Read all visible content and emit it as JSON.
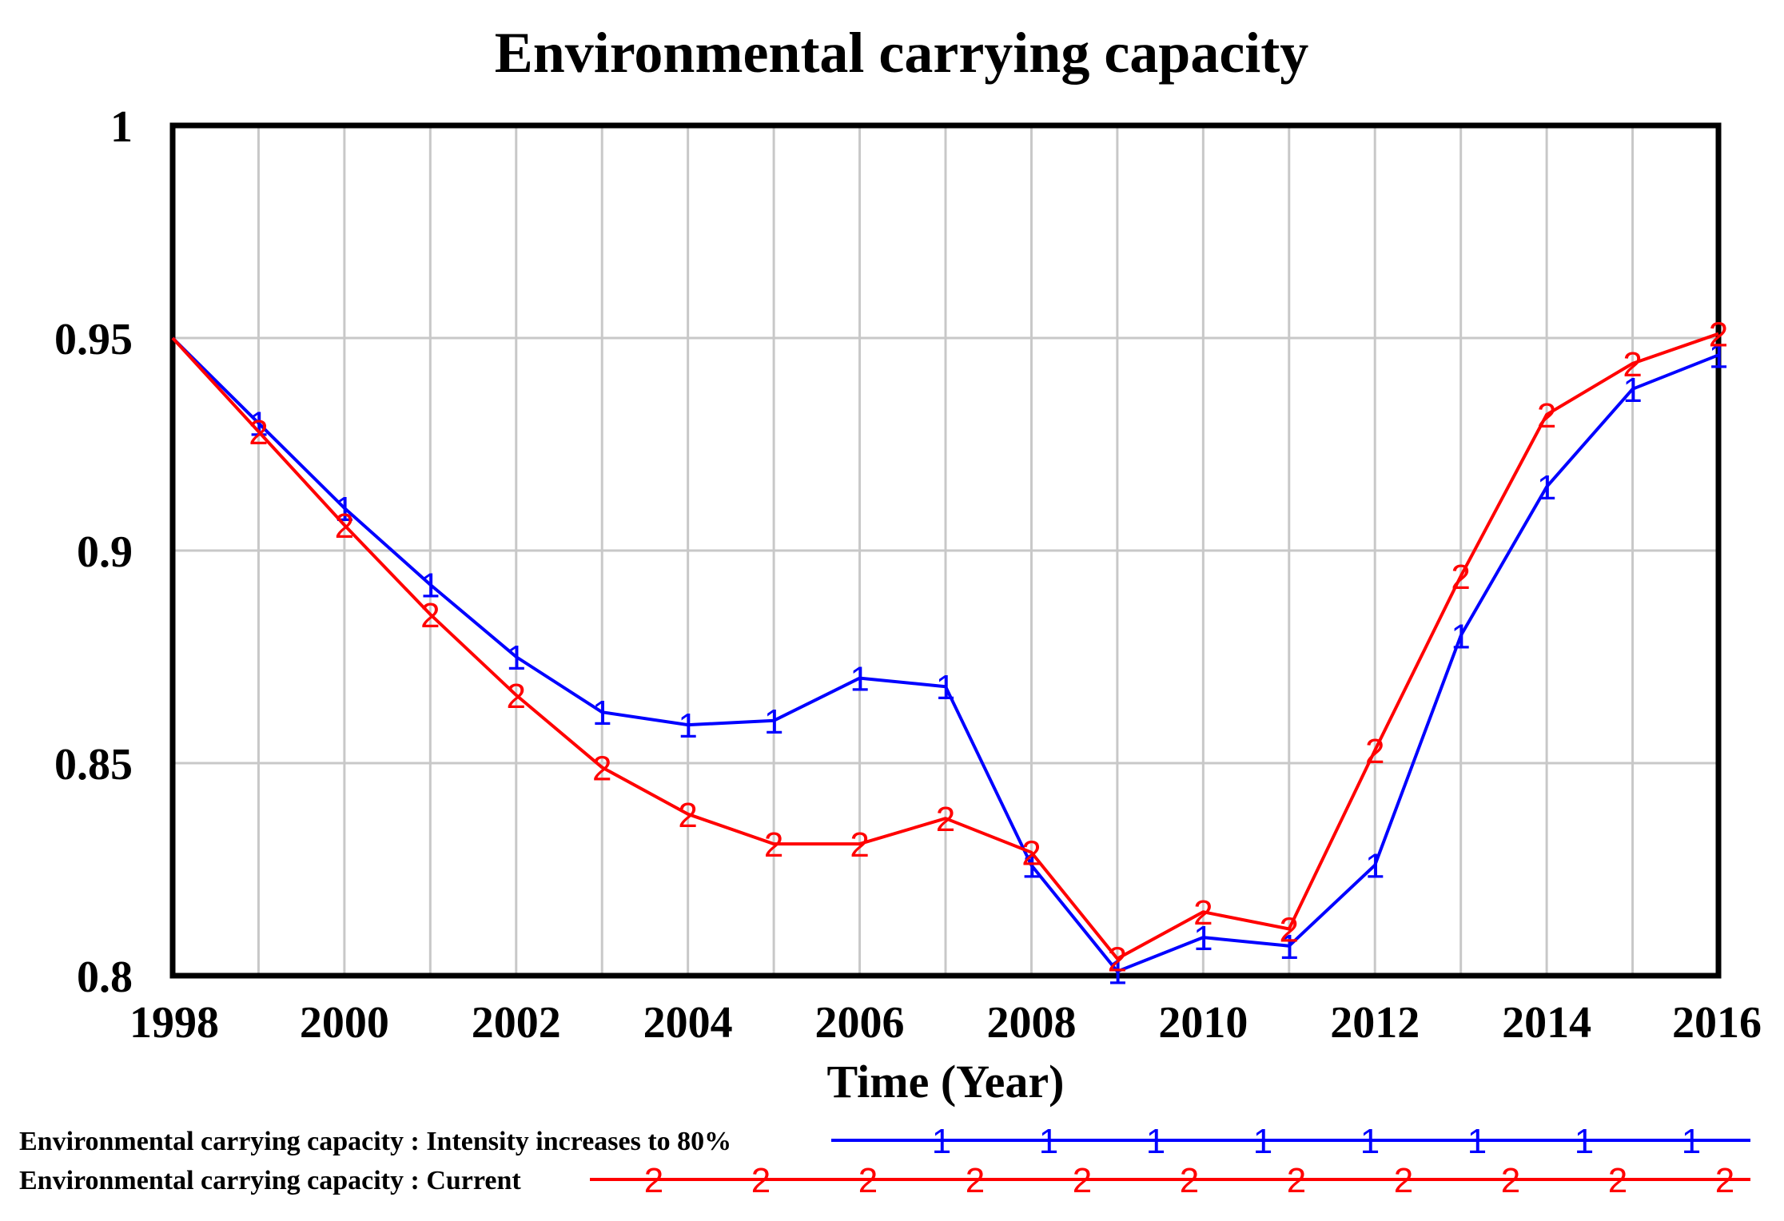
{
  "chart_data": {
    "type": "line",
    "title": "Environmental carrying capacity",
    "xlabel": "Time (Year)",
    "ylabel": "",
    "xlim": [
      1998,
      2016
    ],
    "ylim": [
      0.8,
      1.0
    ],
    "x_ticks": [
      "1998",
      "2000",
      "2002",
      "2004",
      "2006",
      "2008",
      "2010",
      "2012",
      "2014",
      "2016"
    ],
    "y_ticks": [
      "1",
      "0.95",
      "0.9",
      "0.85",
      "0.8"
    ],
    "grid": true,
    "legend_position": "bottom",
    "x": [
      1998,
      1999,
      2000,
      2001,
      2002,
      2003,
      2004,
      2005,
      2006,
      2007,
      2008,
      2009,
      2010,
      2011,
      2012,
      2013,
      2014,
      2015,
      2016
    ],
    "series": [
      {
        "name": "Environmental carrying capacity : Intensity increases to 80%",
        "marker": "1",
        "color": "#0000ff",
        "values": [
          0.95,
          0.93,
          0.91,
          0.892,
          0.875,
          0.862,
          0.859,
          0.86,
          0.87,
          0.868,
          0.826,
          0.801,
          0.809,
          0.807,
          0.826,
          0.88,
          0.915,
          0.938,
          0.946
        ]
      },
      {
        "name": "Environmental carrying capacity : Current",
        "marker": "2",
        "color": "#ff0000",
        "values": [
          0.95,
          0.928,
          0.906,
          0.885,
          0.866,
          0.849,
          0.838,
          0.831,
          0.831,
          0.837,
          0.829,
          0.804,
          0.815,
          0.811,
          0.853,
          0.894,
          0.932,
          0.944,
          0.951
        ]
      }
    ]
  }
}
